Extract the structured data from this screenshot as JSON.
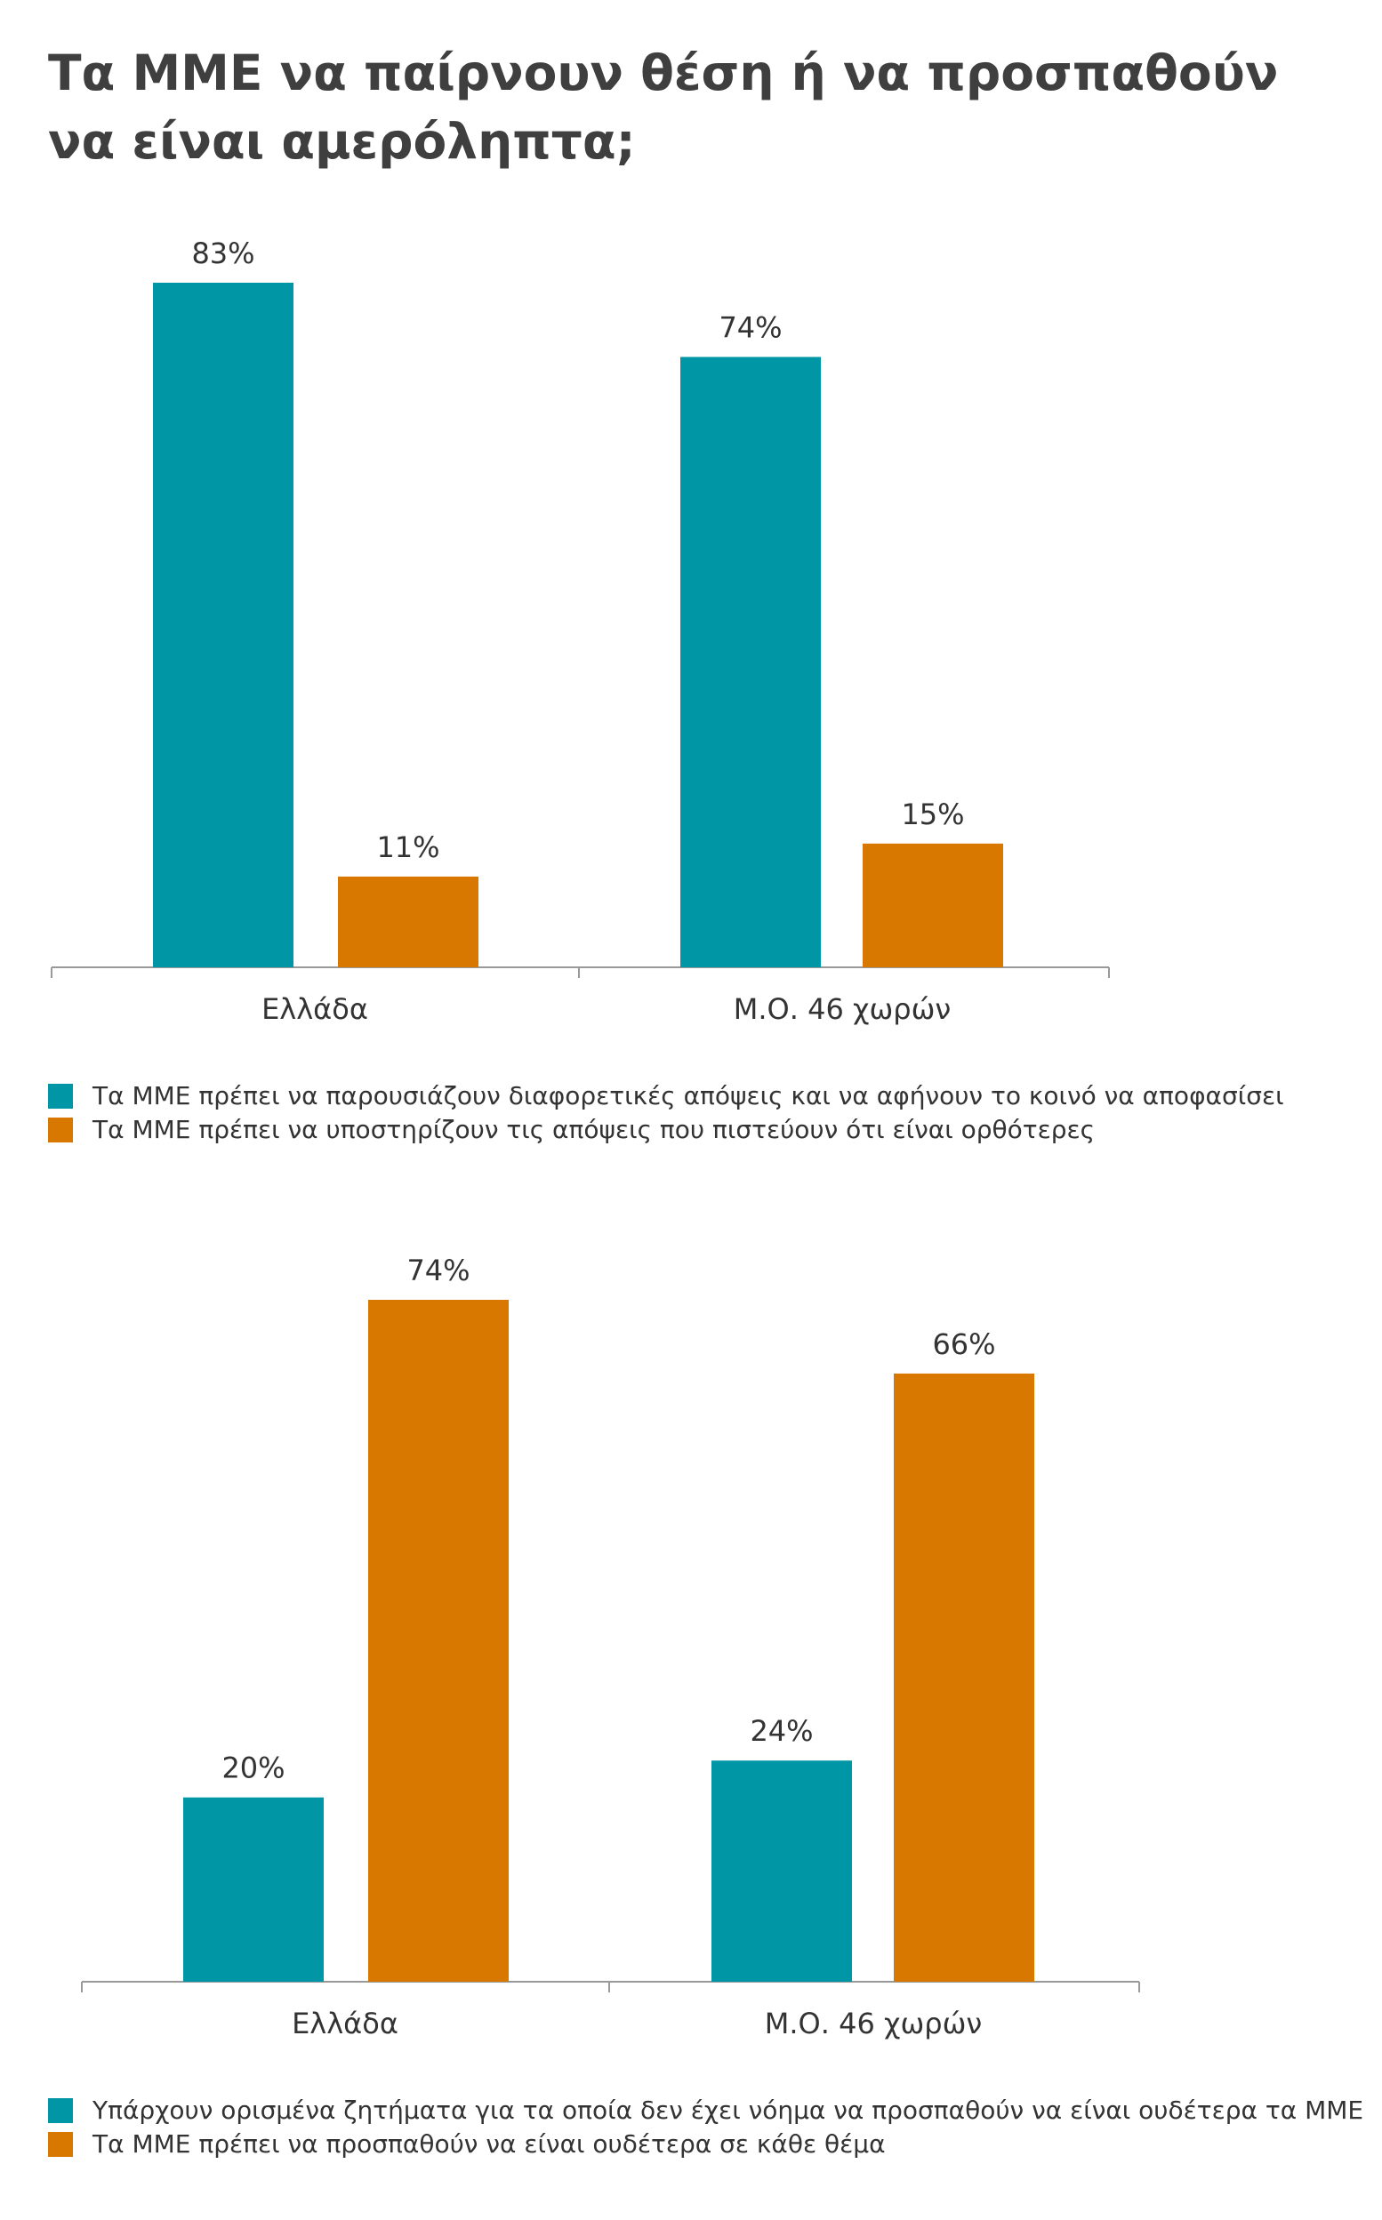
{
  "title_line1": "Τα ΜΜΕ να παίρνουν θέση ή να προσπαθούν",
  "title_line2": "να είναι αμερόληπτα;",
  "colors": {
    "teal": "#0096A6",
    "orange": "#D97800",
    "axis": "#999999",
    "text": "#333333"
  },
  "chart_data": [
    {
      "type": "bar",
      "categories": [
        "Ελλάδα",
        "Μ.Ο. 46 χωρών"
      ],
      "series": [
        {
          "name": "Τα ΜΜΕ πρέπει να παρουσιάζουν διαφορετικές απόψεις και να αφήνουν το κοινό να αποφασίσει",
          "color": "#0096A6",
          "values": [
            83,
            74
          ],
          "labels": [
            "83%",
            "74%"
          ]
        },
        {
          "name": "Τα ΜΜΕ πρέπει να υποστηρίζουν τις απόψεις που πιστεύουν ότι είναι ορθότερες",
          "color": "#D97800",
          "values": [
            11,
            15
          ],
          "labels": [
            "11%",
            "15%"
          ]
        }
      ],
      "ylim": [
        0,
        83
      ],
      "legend": "bottom",
      "grid": false
    },
    {
      "type": "bar",
      "categories": [
        "Ελλάδα",
        "Μ.Ο. 46 χωρών"
      ],
      "series": [
        {
          "name": "Υπάρχουν ορισμένα ζητήματα για τα οποία δεν έχει νόημα να προσπαθούν να είναι ουδέτερα τα ΜΜΕ",
          "color": "#0096A6",
          "values": [
            20,
            24
          ],
          "labels": [
            "20%",
            "24%"
          ]
        },
        {
          "name": "Τα ΜΜΕ πρέπει να προσπαθούν να είναι ουδέτερα σε κάθε θέμα",
          "color": "#D97800",
          "values": [
            74,
            66
          ],
          "labels": [
            "74%",
            "66%"
          ]
        }
      ],
      "ylim": [
        0,
        74
      ],
      "legend": "bottom",
      "grid": false
    }
  ]
}
